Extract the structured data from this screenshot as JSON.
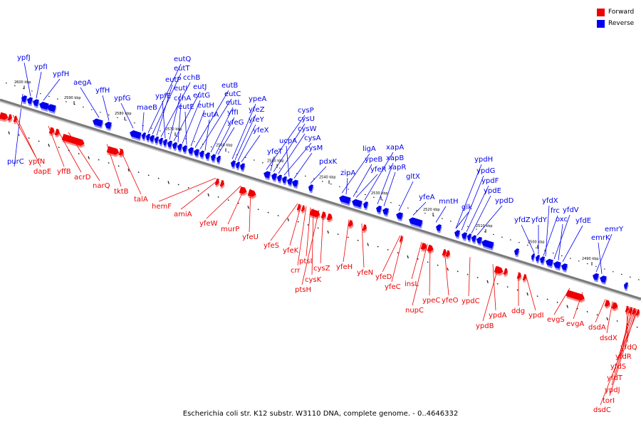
{
  "caption": "Escherichia coli str. K12 substr. W3110 DNA, complete genome. - 0..4646332",
  "legend": [
    {
      "label": "Forward",
      "color": "#ee0000"
    },
    {
      "label": "Reverse",
      "color": "#0000ee"
    }
  ],
  "colors": {
    "forward": "#ee0000",
    "reverse": "#0000ee",
    "backbone": "#7a7a7a"
  },
  "ticks": [
    "2600 kbp",
    "2590 kbp",
    "2580 kbp",
    "2570 kbp",
    "2560 kbp",
    "2550 kbp",
    "2540 kbp",
    "2530 kbp",
    "2520 kbp",
    "2510 kbp",
    "2500 kbp",
    "2490 kbp"
  ],
  "reverse_genes": [
    "ypfJ",
    "ypfI",
    "ypfH",
    "aegA",
    "yffH",
    "ypfG",
    "maeB",
    "eutQ",
    "eutT",
    "eutP",
    "cchB",
    "ypfE",
    "eutI",
    "eutJ",
    "cchA",
    "eutG",
    "eutE",
    "eutH",
    "eutB",
    "eutC",
    "eutA",
    "eutL",
    "yffI",
    "yfeG",
    "ypeA",
    "yfeZ",
    "yfeY",
    "yfeX",
    "cysP",
    "cysU",
    "cysW",
    "cysA",
    "ucpA",
    "yfeT",
    "cysM",
    "pdxK",
    "ligA",
    "ypeB",
    "xapA",
    "yfeR",
    "xapB",
    "zipA",
    "xapR",
    "gltX",
    "ypdH",
    "ypdG",
    "ypdF",
    "ypdE",
    "yfeA",
    "mntH",
    "glk",
    "ypdD",
    "yfdX",
    "yfdZ",
    "yfdY",
    "frc",
    "yfdV",
    "oxc",
    "yfdE",
    "emrY",
    "emrK",
    "purC"
  ],
  "forward_genes": [
    "ypfN",
    "dapE",
    "yffB",
    "acrD",
    "narQ",
    "tktB",
    "talA",
    "hemF",
    "amiA",
    "yfeW",
    "murP",
    "yfeU",
    "yfeS",
    "yfeK",
    "crr",
    "ptsI",
    "cysK",
    "cysZ",
    "ptsH",
    "yfeH",
    "yfeN",
    "yfeD",
    "yfeC",
    "insL",
    "nupC",
    "ypeC",
    "yfeO",
    "ypdC",
    "ypdA",
    "ypdB",
    "ddg",
    "ypdI",
    "evgS",
    "evgA",
    "dsdA",
    "dsdX",
    "yfdQ",
    "yfdR",
    "yfdS",
    "yfdT",
    "ypdJ",
    "torI",
    "dsdC"
  ]
}
